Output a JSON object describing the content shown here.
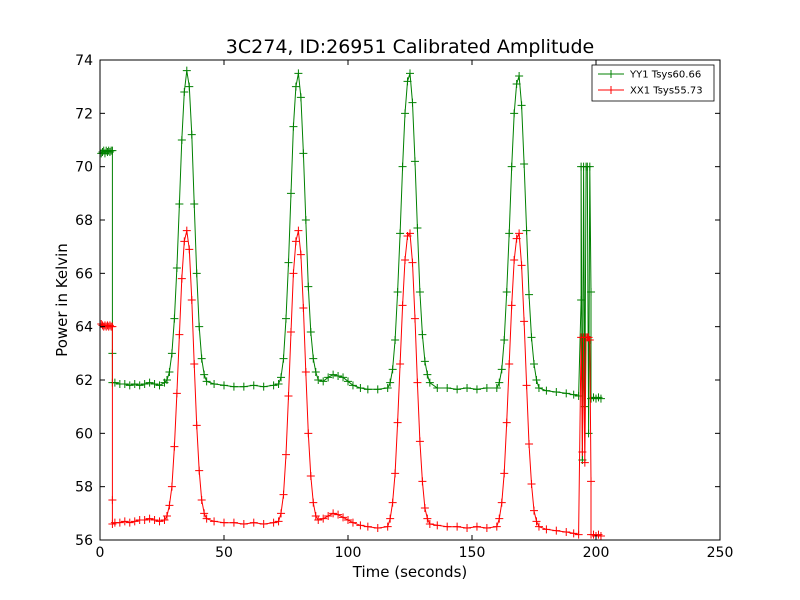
{
  "chart_data": {
    "type": "line",
    "title": "3C274, ID:26951 Calibrated Amplitude",
    "xlabel": "Time (seconds)",
    "ylabel": "Power in Kelvin",
    "xlim": [
      0,
      250
    ],
    "ylim": [
      56,
      74
    ],
    "xticks": [
      0,
      50,
      100,
      150,
      200,
      250
    ],
    "yticks": [
      56,
      58,
      60,
      62,
      64,
      66,
      68,
      70,
      72,
      74
    ],
    "grid": false,
    "legend_position": "top-right",
    "series": [
      {
        "name": "YY1 Tsys60.66",
        "color": "#008000",
        "marker": "+",
        "points": [
          [
            0.5,
            70.5
          ],
          [
            1,
            70.55
          ],
          [
            1.5,
            70.6
          ],
          [
            2,
            70.5
          ],
          [
            2.5,
            70.6
          ],
          [
            3,
            70.55
          ],
          [
            3.5,
            70.6
          ],
          [
            4,
            70.55
          ],
          [
            4.5,
            70.6
          ],
          [
            5,
            70.6
          ],
          [
            5,
            63
          ],
          [
            5,
            61.9
          ],
          [
            6,
            61.9
          ],
          [
            8,
            61.85
          ],
          [
            10,
            61.85
          ],
          [
            12,
            61.8
          ],
          [
            14,
            61.85
          ],
          [
            16,
            61.8
          ],
          [
            18,
            61.85
          ],
          [
            20,
            61.9
          ],
          [
            22,
            61.85
          ],
          [
            24,
            61.8
          ],
          [
            26,
            61.9
          ],
          [
            27,
            62.0
          ],
          [
            28,
            62.3
          ],
          [
            29,
            63.0
          ],
          [
            30,
            64.3
          ],
          [
            31,
            66.2
          ],
          [
            32,
            68.6
          ],
          [
            33,
            71.0
          ],
          [
            34,
            72.8
          ],
          [
            35,
            73.6
          ],
          [
            36,
            73.0
          ],
          [
            37,
            71.2
          ],
          [
            38,
            68.6
          ],
          [
            39,
            66.0
          ],
          [
            40,
            64.0
          ],
          [
            41,
            62.8
          ],
          [
            42,
            62.2
          ],
          [
            43,
            61.95
          ],
          [
            46,
            61.85
          ],
          [
            50,
            61.8
          ],
          [
            54,
            61.75
          ],
          [
            58,
            61.75
          ],
          [
            62,
            61.8
          ],
          [
            66,
            61.75
          ],
          [
            70,
            61.8
          ],
          [
            72,
            61.85
          ],
          [
            73,
            62.1
          ],
          [
            74,
            62.8
          ],
          [
            75,
            64.3
          ],
          [
            76,
            66.4
          ],
          [
            77,
            69.0
          ],
          [
            78,
            71.5
          ],
          [
            79,
            73.0
          ],
          [
            80,
            73.5
          ],
          [
            81,
            72.6
          ],
          [
            82,
            70.5
          ],
          [
            83,
            68.0
          ],
          [
            84,
            65.5
          ],
          [
            85,
            63.8
          ],
          [
            86,
            62.8
          ],
          [
            87,
            62.3
          ],
          [
            88,
            62.0
          ],
          [
            90,
            61.95
          ],
          [
            92,
            62.1
          ],
          [
            94,
            62.2
          ],
          [
            96,
            62.15
          ],
          [
            98,
            62.1
          ],
          [
            100,
            61.95
          ],
          [
            102,
            61.8
          ],
          [
            105,
            61.7
          ],
          [
            108,
            61.65
          ],
          [
            112,
            61.65
          ],
          [
            116,
            61.7
          ],
          [
            117,
            61.9
          ],
          [
            118,
            62.4
          ],
          [
            119,
            63.5
          ],
          [
            120,
            65.3
          ],
          [
            121,
            67.5
          ],
          [
            122,
            70.0
          ],
          [
            123,
            72.0
          ],
          [
            124,
            73.2
          ],
          [
            125,
            73.5
          ],
          [
            126,
            72.4
          ],
          [
            127,
            70.2
          ],
          [
            128,
            67.7
          ],
          [
            129,
            65.3
          ],
          [
            130,
            63.7
          ],
          [
            131,
            62.7
          ],
          [
            132,
            62.2
          ],
          [
            133,
            61.9
          ],
          [
            136,
            61.7
          ],
          [
            140,
            61.7
          ],
          [
            144,
            61.65
          ],
          [
            148,
            61.7
          ],
          [
            152,
            61.65
          ],
          [
            156,
            61.7
          ],
          [
            160,
            61.7
          ],
          [
            161,
            61.9
          ],
          [
            162,
            62.4
          ],
          [
            163,
            63.5
          ],
          [
            164,
            65.3
          ],
          [
            165,
            67.5
          ],
          [
            166,
            70.0
          ],
          [
            167,
            72.0
          ],
          [
            168,
            73.1
          ],
          [
            169,
            73.4
          ],
          [
            170,
            72.3
          ],
          [
            171,
            70.1
          ],
          [
            172,
            67.6
          ],
          [
            173,
            65.2
          ],
          [
            174,
            63.6
          ],
          [
            175,
            62.6
          ],
          [
            176,
            62.0
          ],
          [
            177,
            61.7
          ],
          [
            180,
            61.6
          ],
          [
            184,
            61.55
          ],
          [
            188,
            61.5
          ],
          [
            191,
            61.45
          ],
          [
            193,
            61.4
          ],
          [
            194,
            65
          ],
          [
            194,
            70.0
          ],
          [
            194.5,
            59
          ],
          [
            195,
            70.0
          ],
          [
            195.5,
            61
          ],
          [
            196,
            70.0
          ],
          [
            196.5,
            70.0
          ],
          [
            197,
            60
          ],
          [
            197.5,
            70.0
          ],
          [
            198,
            65.3
          ],
          [
            198,
            61.3
          ],
          [
            199,
            61.35
          ],
          [
            200,
            61.3
          ],
          [
            201,
            61.35
          ],
          [
            202,
            61.3
          ]
        ]
      },
      {
        "name": "XX1 Tsys55.73",
        "color": "#ff0000",
        "marker": "+",
        "points": [
          [
            0.5,
            64.1
          ],
          [
            1,
            64.05
          ],
          [
            1.5,
            64.0
          ],
          [
            2,
            64.05
          ],
          [
            2.5,
            64.0
          ],
          [
            3,
            64.05
          ],
          [
            3.5,
            64.0
          ],
          [
            4,
            64.05
          ],
          [
            4.5,
            64.0
          ],
          [
            5,
            64.0
          ],
          [
            5,
            57.5
          ],
          [
            5,
            56.6
          ],
          [
            6,
            56.65
          ],
          [
            8,
            56.65
          ],
          [
            10,
            56.7
          ],
          [
            12,
            56.65
          ],
          [
            14,
            56.7
          ],
          [
            16,
            56.75
          ],
          [
            18,
            56.75
          ],
          [
            20,
            56.8
          ],
          [
            22,
            56.75
          ],
          [
            24,
            56.7
          ],
          [
            26,
            56.75
          ],
          [
            27,
            56.9
          ],
          [
            28,
            57.3
          ],
          [
            29,
            58.0
          ],
          [
            30,
            59.5
          ],
          [
            31,
            61.5
          ],
          [
            32,
            63.7
          ],
          [
            33,
            65.8
          ],
          [
            34,
            67.2
          ],
          [
            35,
            67.6
          ],
          [
            36,
            66.9
          ],
          [
            37,
            65.0
          ],
          [
            38,
            62.6
          ],
          [
            39,
            60.3
          ],
          [
            40,
            58.6
          ],
          [
            41,
            57.5
          ],
          [
            42,
            57.0
          ],
          [
            43,
            56.8
          ],
          [
            46,
            56.7
          ],
          [
            50,
            56.65
          ],
          [
            54,
            56.65
          ],
          [
            58,
            56.6
          ],
          [
            62,
            56.65
          ],
          [
            66,
            56.6
          ],
          [
            70,
            56.65
          ],
          [
            72,
            56.7
          ],
          [
            73,
            57.0
          ],
          [
            74,
            57.7
          ],
          [
            75,
            59.2
          ],
          [
            76,
            61.4
          ],
          [
            77,
            63.8
          ],
          [
            78,
            66.0
          ],
          [
            79,
            67.2
          ],
          [
            80,
            67.6
          ],
          [
            81,
            66.7
          ],
          [
            82,
            64.7
          ],
          [
            83,
            62.3
          ],
          [
            84,
            60.0
          ],
          [
            85,
            58.4
          ],
          [
            86,
            57.4
          ],
          [
            87,
            56.9
          ],
          [
            88,
            56.75
          ],
          [
            90,
            56.8
          ],
          [
            92,
            56.9
          ],
          [
            94,
            57.0
          ],
          [
            96,
            56.95
          ],
          [
            98,
            56.85
          ],
          [
            100,
            56.75
          ],
          [
            102,
            56.65
          ],
          [
            105,
            56.55
          ],
          [
            108,
            56.5
          ],
          [
            112,
            56.45
          ],
          [
            116,
            56.5
          ],
          [
            117,
            56.8
          ],
          [
            118,
            57.4
          ],
          [
            119,
            58.5
          ],
          [
            120,
            60.4
          ],
          [
            121,
            62.6
          ],
          [
            122,
            64.8
          ],
          [
            123,
            66.5
          ],
          [
            124,
            67.4
          ],
          [
            125,
            67.5
          ],
          [
            126,
            66.4
          ],
          [
            127,
            64.3
          ],
          [
            128,
            61.9
          ],
          [
            129,
            59.7
          ],
          [
            130,
            58.2
          ],
          [
            131,
            57.2
          ],
          [
            132,
            56.8
          ],
          [
            133,
            56.6
          ],
          [
            136,
            56.55
          ],
          [
            140,
            56.5
          ],
          [
            144,
            56.5
          ],
          [
            148,
            56.45
          ],
          [
            152,
            56.5
          ],
          [
            156,
            56.45
          ],
          [
            160,
            56.5
          ],
          [
            161,
            56.8
          ],
          [
            162,
            57.4
          ],
          [
            163,
            58.5
          ],
          [
            164,
            60.4
          ],
          [
            165,
            62.6
          ],
          [
            166,
            64.8
          ],
          [
            167,
            66.5
          ],
          [
            168,
            67.3
          ],
          [
            169,
            67.5
          ],
          [
            170,
            66.3
          ],
          [
            171,
            64.2
          ],
          [
            172,
            61.8
          ],
          [
            173,
            59.6
          ],
          [
            174,
            58.1
          ],
          [
            175,
            57.1
          ],
          [
            176,
            56.7
          ],
          [
            177,
            56.5
          ],
          [
            180,
            56.4
          ],
          [
            184,
            56.35
          ],
          [
            188,
            56.3
          ],
          [
            191,
            56.25
          ],
          [
            193,
            56.2
          ],
          [
            194,
            63.6
          ],
          [
            194.5,
            59.3
          ],
          [
            195,
            63.6
          ],
          [
            195.5,
            58.9
          ],
          [
            196,
            63.6
          ],
          [
            196.5,
            63.6
          ],
          [
            197,
            63.6
          ],
          [
            197.5,
            63.5
          ],
          [
            198,
            58.2
          ],
          [
            198,
            56.2
          ],
          [
            199,
            56.2
          ],
          [
            200,
            56.15
          ],
          [
            201,
            56.2
          ],
          [
            202,
            56.15
          ]
        ]
      }
    ]
  }
}
